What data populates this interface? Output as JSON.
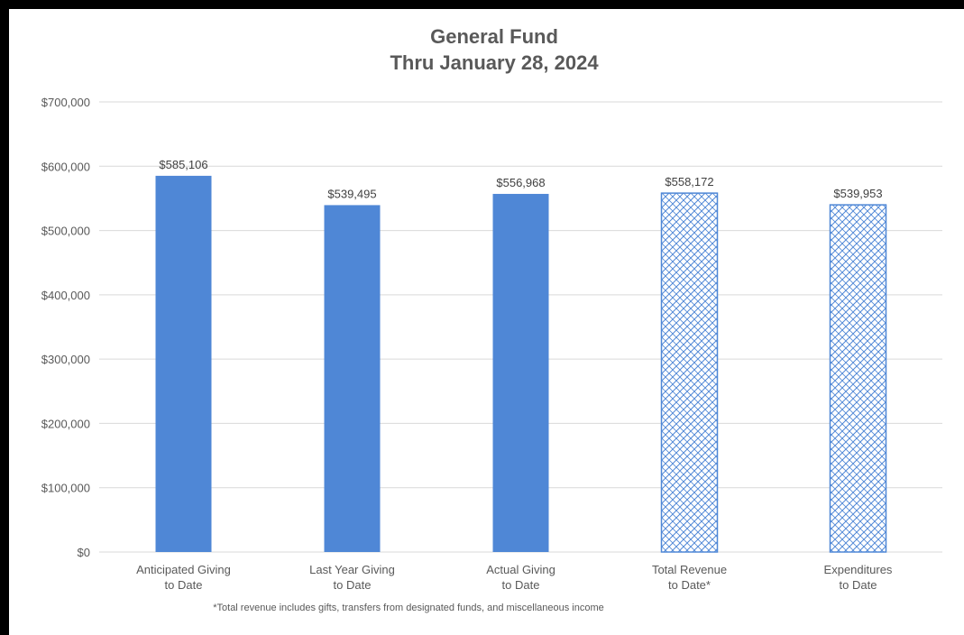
{
  "chart_data": {
    "type": "bar",
    "title": [
      "General Fund",
      "Thru January 28, 2024"
    ],
    "categories": [
      [
        "Anticipated Giving",
        "to Date"
      ],
      [
        "Last Year Giving",
        "to Date"
      ],
      [
        "Actual Giving",
        "to Date"
      ],
      [
        "Total Revenue",
        "to Date*"
      ],
      [
        "Expenditures",
        "to Date"
      ]
    ],
    "values": [
      585106,
      539495,
      556968,
      558172,
      539953
    ],
    "data_labels": [
      "$585,106",
      "$539,495",
      "$556,968",
      "$558,172",
      "$539,953"
    ],
    "bar_styles": [
      "solid",
      "solid",
      "solid",
      "hatched",
      "hatched"
    ],
    "ylim": [
      0,
      700000
    ],
    "yticks": [
      0,
      100000,
      200000,
      300000,
      400000,
      500000,
      600000,
      700000
    ],
    "ytick_labels": [
      "$0",
      "$100,000",
      "$200,000",
      "$300,000",
      "$400,000",
      "$500,000",
      "$600,000",
      "$700,000"
    ],
    "grid": true,
    "legend": false,
    "footnote": "*Total revenue includes gifts, transfers from designated funds, and miscellaneous income",
    "colors": {
      "bar_fill": "#4f87d6",
      "hatch_stroke": "#4f87d6",
      "hatch_bg": "#ffffff",
      "grid": "#d9d9d9",
      "text": "#595959"
    }
  }
}
